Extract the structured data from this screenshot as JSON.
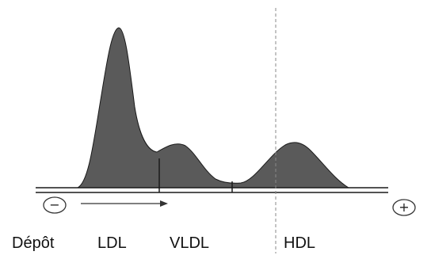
{
  "fractions": {
    "depot": "Dépôt",
    "ldl": "LDL",
    "vldl": "VLDL",
    "hdl": "HDL"
  },
  "electrodes": {
    "negative": "−",
    "positive": "+"
  },
  "colors": {
    "peak_fill": "#5a5a5a",
    "line": "#1a1a1a",
    "dashed_line": "#8a8a8a"
  }
}
